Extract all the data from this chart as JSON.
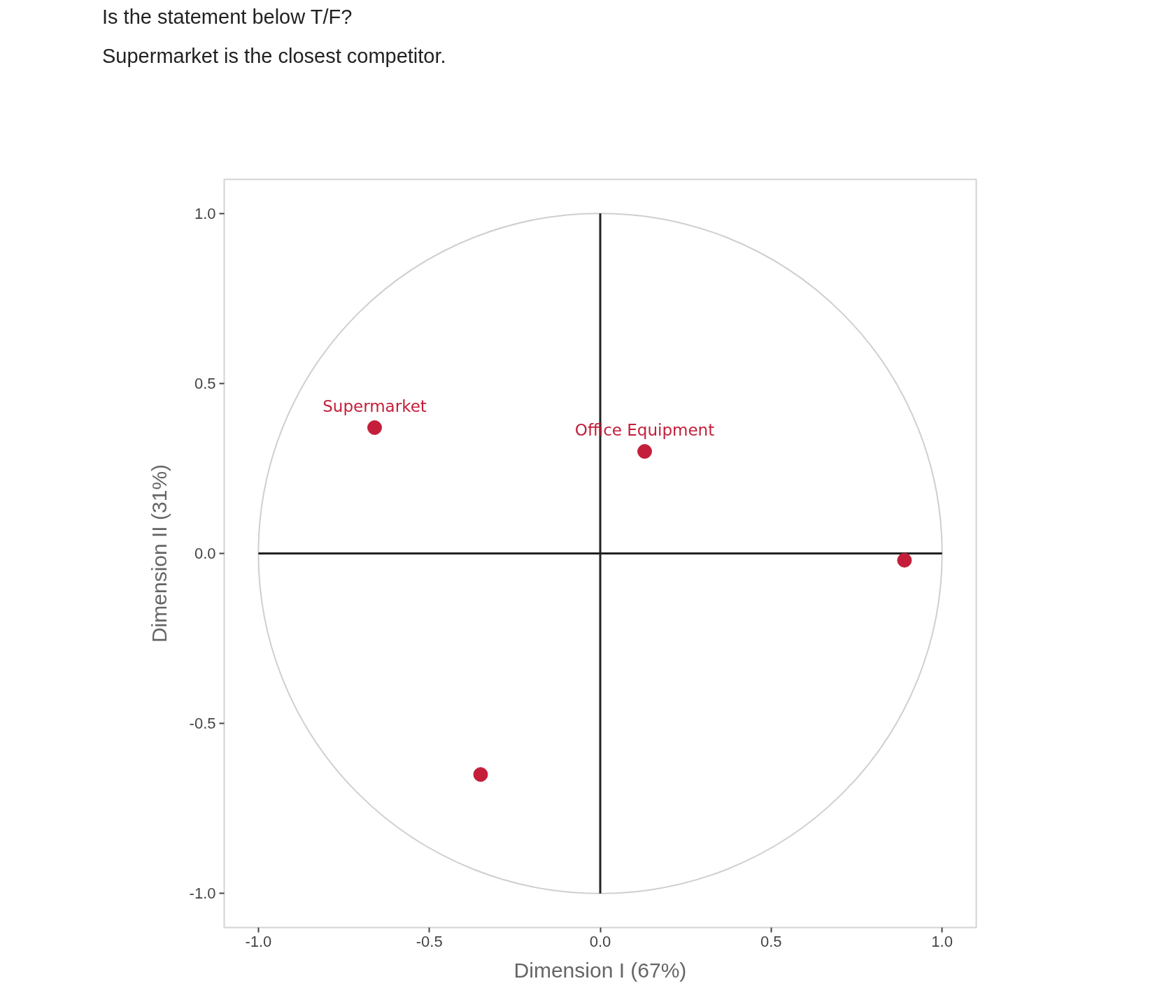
{
  "chart_data": {
    "type": "scatter",
    "title": "Is the statement below T/F?",
    "subtitle": "Supermarket is the closest competitor.",
    "xlabel": "Dimension I (67%)",
    "ylabel": "Dimension II (31%)",
    "xlim": [
      -1.1,
      1.1
    ],
    "ylim": [
      -1.1,
      1.1
    ],
    "xticks": [
      {
        "value": -1,
        "label": "-1.0"
      },
      {
        "value": -0.5,
        "label": "-0.5"
      },
      {
        "value": 0,
        "label": "0.0"
      },
      {
        "value": 0.5,
        "label": "0.5"
      },
      {
        "value": 1,
        "label": "1.0"
      }
    ],
    "yticks": [
      {
        "value": -1,
        "label": "-1.0"
      },
      {
        "value": -0.5,
        "label": "-0.5"
      },
      {
        "value": 0,
        "label": "0.0"
      },
      {
        "value": 0.5,
        "label": "0.5"
      },
      {
        "value": 1,
        "label": "1.0"
      }
    ],
    "series": [
      {
        "type": "line",
        "color": "#222222",
        "x": [
          -1,
          1
        ],
        "values": [
          0,
          0
        ]
      },
      {
        "type": "line",
        "color": "#222222",
        "x": [
          0,
          0
        ],
        "values": [
          1,
          -1
        ]
      },
      {
        "color": "#c41e3a",
        "marker": "circle",
        "x": [
          -0.66,
          0.13,
          0.89,
          -0.35
        ],
        "values": [
          0.37,
          0.3,
          -0.02,
          -0.65
        ]
      }
    ],
    "annotations": [
      {
        "text": "Supermarket",
        "x": -0.66,
        "y": 0.37
      },
      {
        "text": "Office Equipment",
        "x": 0.13,
        "y": 0.3
      }
    ]
  }
}
